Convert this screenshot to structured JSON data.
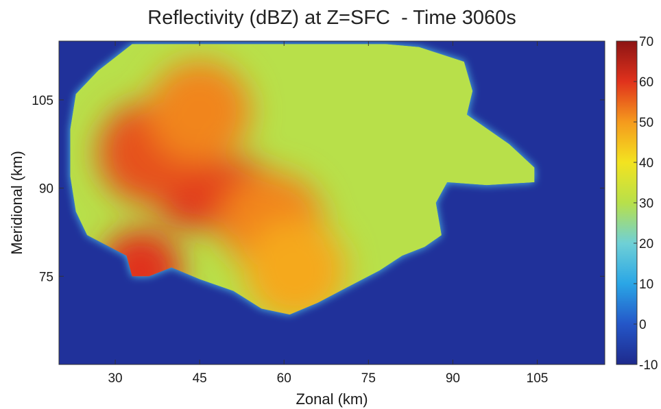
{
  "chart_data": {
    "type": "heatmap",
    "title": "Reflectivity (dBZ) at Z=SFC  - Time 3060s",
    "xlabel": "Zonal (km)",
    "ylabel": "Meridional (km)",
    "xlim": [
      20,
      117
    ],
    "ylim": [
      60,
      115
    ],
    "xticks": [
      30,
      45,
      60,
      75,
      90,
      105
    ],
    "yticks": [
      75,
      90,
      105
    ],
    "colorbar": {
      "label": "",
      "range": [
        -10,
        70
      ],
      "ticks": [
        -10,
        0,
        10,
        20,
        30,
        40,
        50,
        60,
        70
      ]
    },
    "background_value": -10,
    "colors": {
      "background": "#20319a",
      "low": "#4fc3ea",
      "mid": "#b8e04a",
      "high": "#f1e21d",
      "core": "#d8271d"
    },
    "storm_outline": [
      [
        33,
        114.5
      ],
      [
        44,
        114.5
      ],
      [
        60,
        114.5
      ],
      [
        78,
        114.5
      ],
      [
        84,
        114
      ],
      [
        92,
        111.5
      ],
      [
        93.5,
        106.5
      ],
      [
        92.5,
        102.5
      ],
      [
        100,
        97.5
      ],
      [
        104.5,
        93.5
      ],
      [
        104.5,
        91
      ],
      [
        96,
        90.5
      ],
      [
        89,
        91
      ],
      [
        87,
        87.5
      ],
      [
        88,
        82
      ],
      [
        85,
        80
      ],
      [
        81,
        78.5
      ],
      [
        77,
        76
      ],
      [
        72,
        73.5
      ],
      [
        66,
        70.5
      ],
      [
        61,
        68.5
      ],
      [
        56,
        69.5
      ],
      [
        51,
        72.5
      ],
      [
        45,
        74.5
      ],
      [
        40,
        76.5
      ],
      [
        36,
        75
      ],
      [
        33,
        75
      ],
      [
        32,
        78.5
      ],
      [
        28,
        80.5
      ],
      [
        25,
        82
      ],
      [
        23,
        86
      ],
      [
        22,
        92
      ],
      [
        22,
        100
      ],
      [
        23,
        106
      ],
      [
        27,
        110
      ]
    ],
    "cores": [
      {
        "x": 44,
        "y": 90,
        "value": 60
      },
      {
        "x": 52,
        "y": 88,
        "value": 58
      },
      {
        "x": 36,
        "y": 96,
        "value": 57
      },
      {
        "x": 58,
        "y": 84,
        "value": 52
      },
      {
        "x": 45,
        "y": 103,
        "value": 52
      },
      {
        "x": 62,
        "y": 76,
        "value": 48
      },
      {
        "x": 34.5,
        "y": 76,
        "value": 60
      }
    ]
  }
}
